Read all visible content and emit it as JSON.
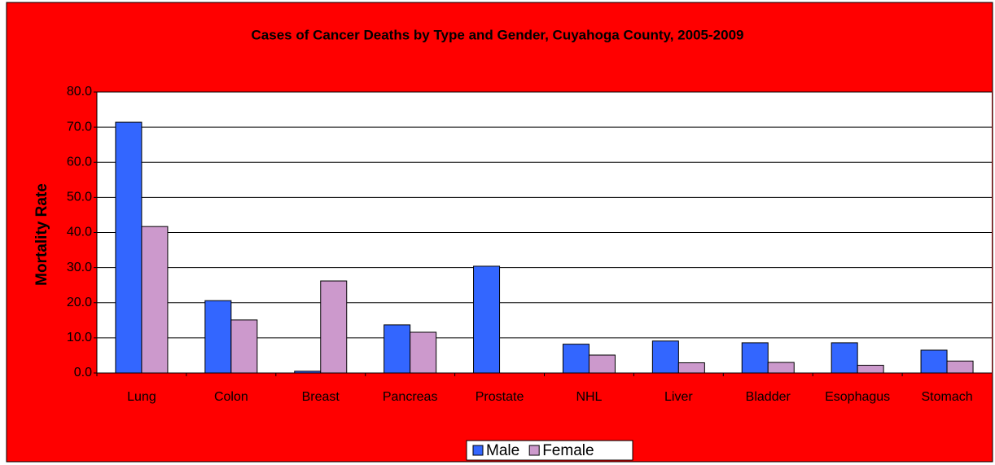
{
  "chart_data": {
    "type": "bar",
    "title": "Cases of Cancer Deaths by Type and Gender, Cuyahoga County,  2005-2009",
    "y_label": "Mortality Rate",
    "categories": [
      "Lung",
      "Colon",
      "Breast",
      "Pancreas",
      "Prostate",
      "NHL",
      "Liver",
      "Bladder",
      "Esophagus",
      "Stomach"
    ],
    "series": [
      {
        "name": "Male",
        "color": "#3366ff",
        "values": [
          71.4,
          20.6,
          0.5,
          13.7,
          30.4,
          8.2,
          9.1,
          8.6,
          8.6,
          6.5
        ]
      },
      {
        "name": "Female",
        "color": "#cc99cc",
        "values": [
          41.7,
          15.1,
          26.2,
          11.6,
          0,
          5.1,
          2.9,
          3.0,
          2.2,
          3.4
        ]
      }
    ],
    "ylim": [
      0,
      80
    ],
    "yticks": [
      {
        "value": 0,
        "label": "0.0"
      },
      {
        "value": 10,
        "label": "10.0"
      },
      {
        "value": 20,
        "label": "20.0"
      },
      {
        "value": 30,
        "label": "30.0"
      },
      {
        "value": 40,
        "label": "40.0"
      },
      {
        "value": 50,
        "label": "50.0"
      },
      {
        "value": 60,
        "label": "60.0"
      },
      {
        "value": 70,
        "label": "70.0"
      },
      {
        "value": 80,
        "label": "80.0"
      }
    ],
    "grid": true,
    "legend": "bottom"
  }
}
